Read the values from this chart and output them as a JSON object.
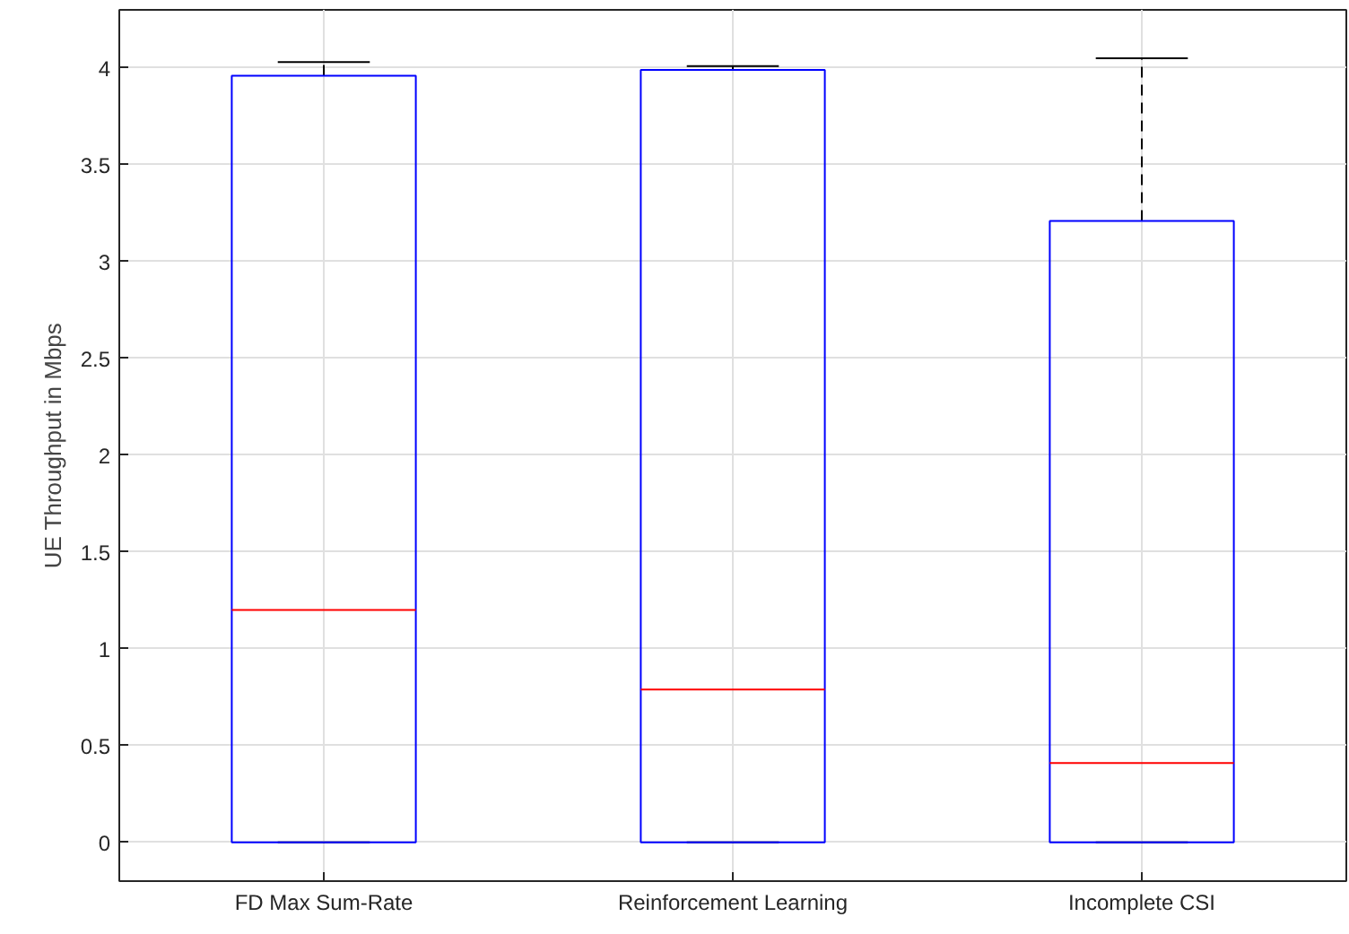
{
  "chart_data": {
    "type": "box",
    "ylabel": "UE Throughput in Mbps",
    "categories": [
      "FD Max Sum-Rate",
      "Reinforcement Learning",
      "Incomplete CSI"
    ],
    "series": [
      {
        "color": "#0000ff",
        "boxes": [
          {
            "low": 0,
            "q1": 0,
            "median": 1.2,
            "q3": 3.96,
            "high": 4.03
          },
          {
            "low": 0,
            "q1": 0,
            "median": 0.79,
            "q3": 3.99,
            "high": 4.01
          },
          {
            "low": 0,
            "q1": 0,
            "median": 0.41,
            "q3": 3.21,
            "high": 4.05
          }
        ]
      }
    ],
    "ylim": [
      -0.2,
      4.3
    ],
    "yticks": [
      0,
      0.5,
      1,
      1.5,
      2,
      2.5,
      3,
      3.5,
      4
    ],
    "grid": true
  }
}
